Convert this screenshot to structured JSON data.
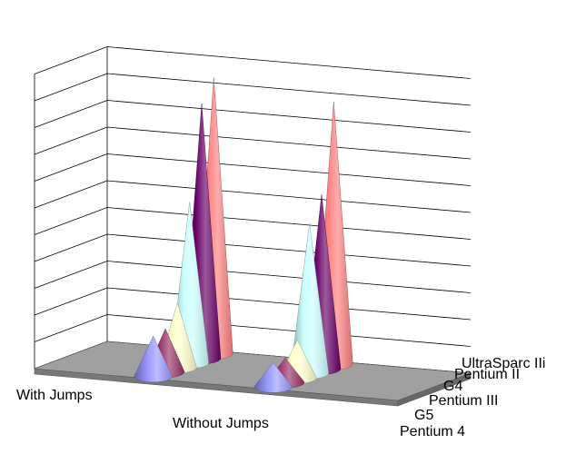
{
  "chart_data": {
    "type": "bar",
    "subtype": "3d-cone",
    "categories": [
      "With Jumps",
      "Without Jumps"
    ],
    "series": [
      {
        "name": "Pentium 4",
        "color": "#9999ff",
        "values": [
          1.5,
          0.9
        ]
      },
      {
        "name": "G5",
        "color": "#993366",
        "values": [
          1.6,
          0.9
        ]
      },
      {
        "name": "Pentium III",
        "color": "#ffffcc",
        "values": [
          2.4,
          1.4
        ]
      },
      {
        "name": "G4",
        "color": "#ccffff",
        "values": [
          6.0,
          5.6
        ]
      },
      {
        "name": "Pentium II",
        "color": "#660066",
        "values": [
          9.5,
          6.5
        ]
      },
      {
        "name": "UltraSparc IIi",
        "color": "#ff8080",
        "values": [
          10.3,
          9.8
        ]
      }
    ],
    "ylim": [
      0,
      11
    ],
    "grid": true,
    "title": "",
    "xlabel": "",
    "ylabel": ""
  },
  "colors": {
    "floor": "#a0a0a0",
    "floor_edge": "#555555",
    "gridline": "#000000"
  }
}
